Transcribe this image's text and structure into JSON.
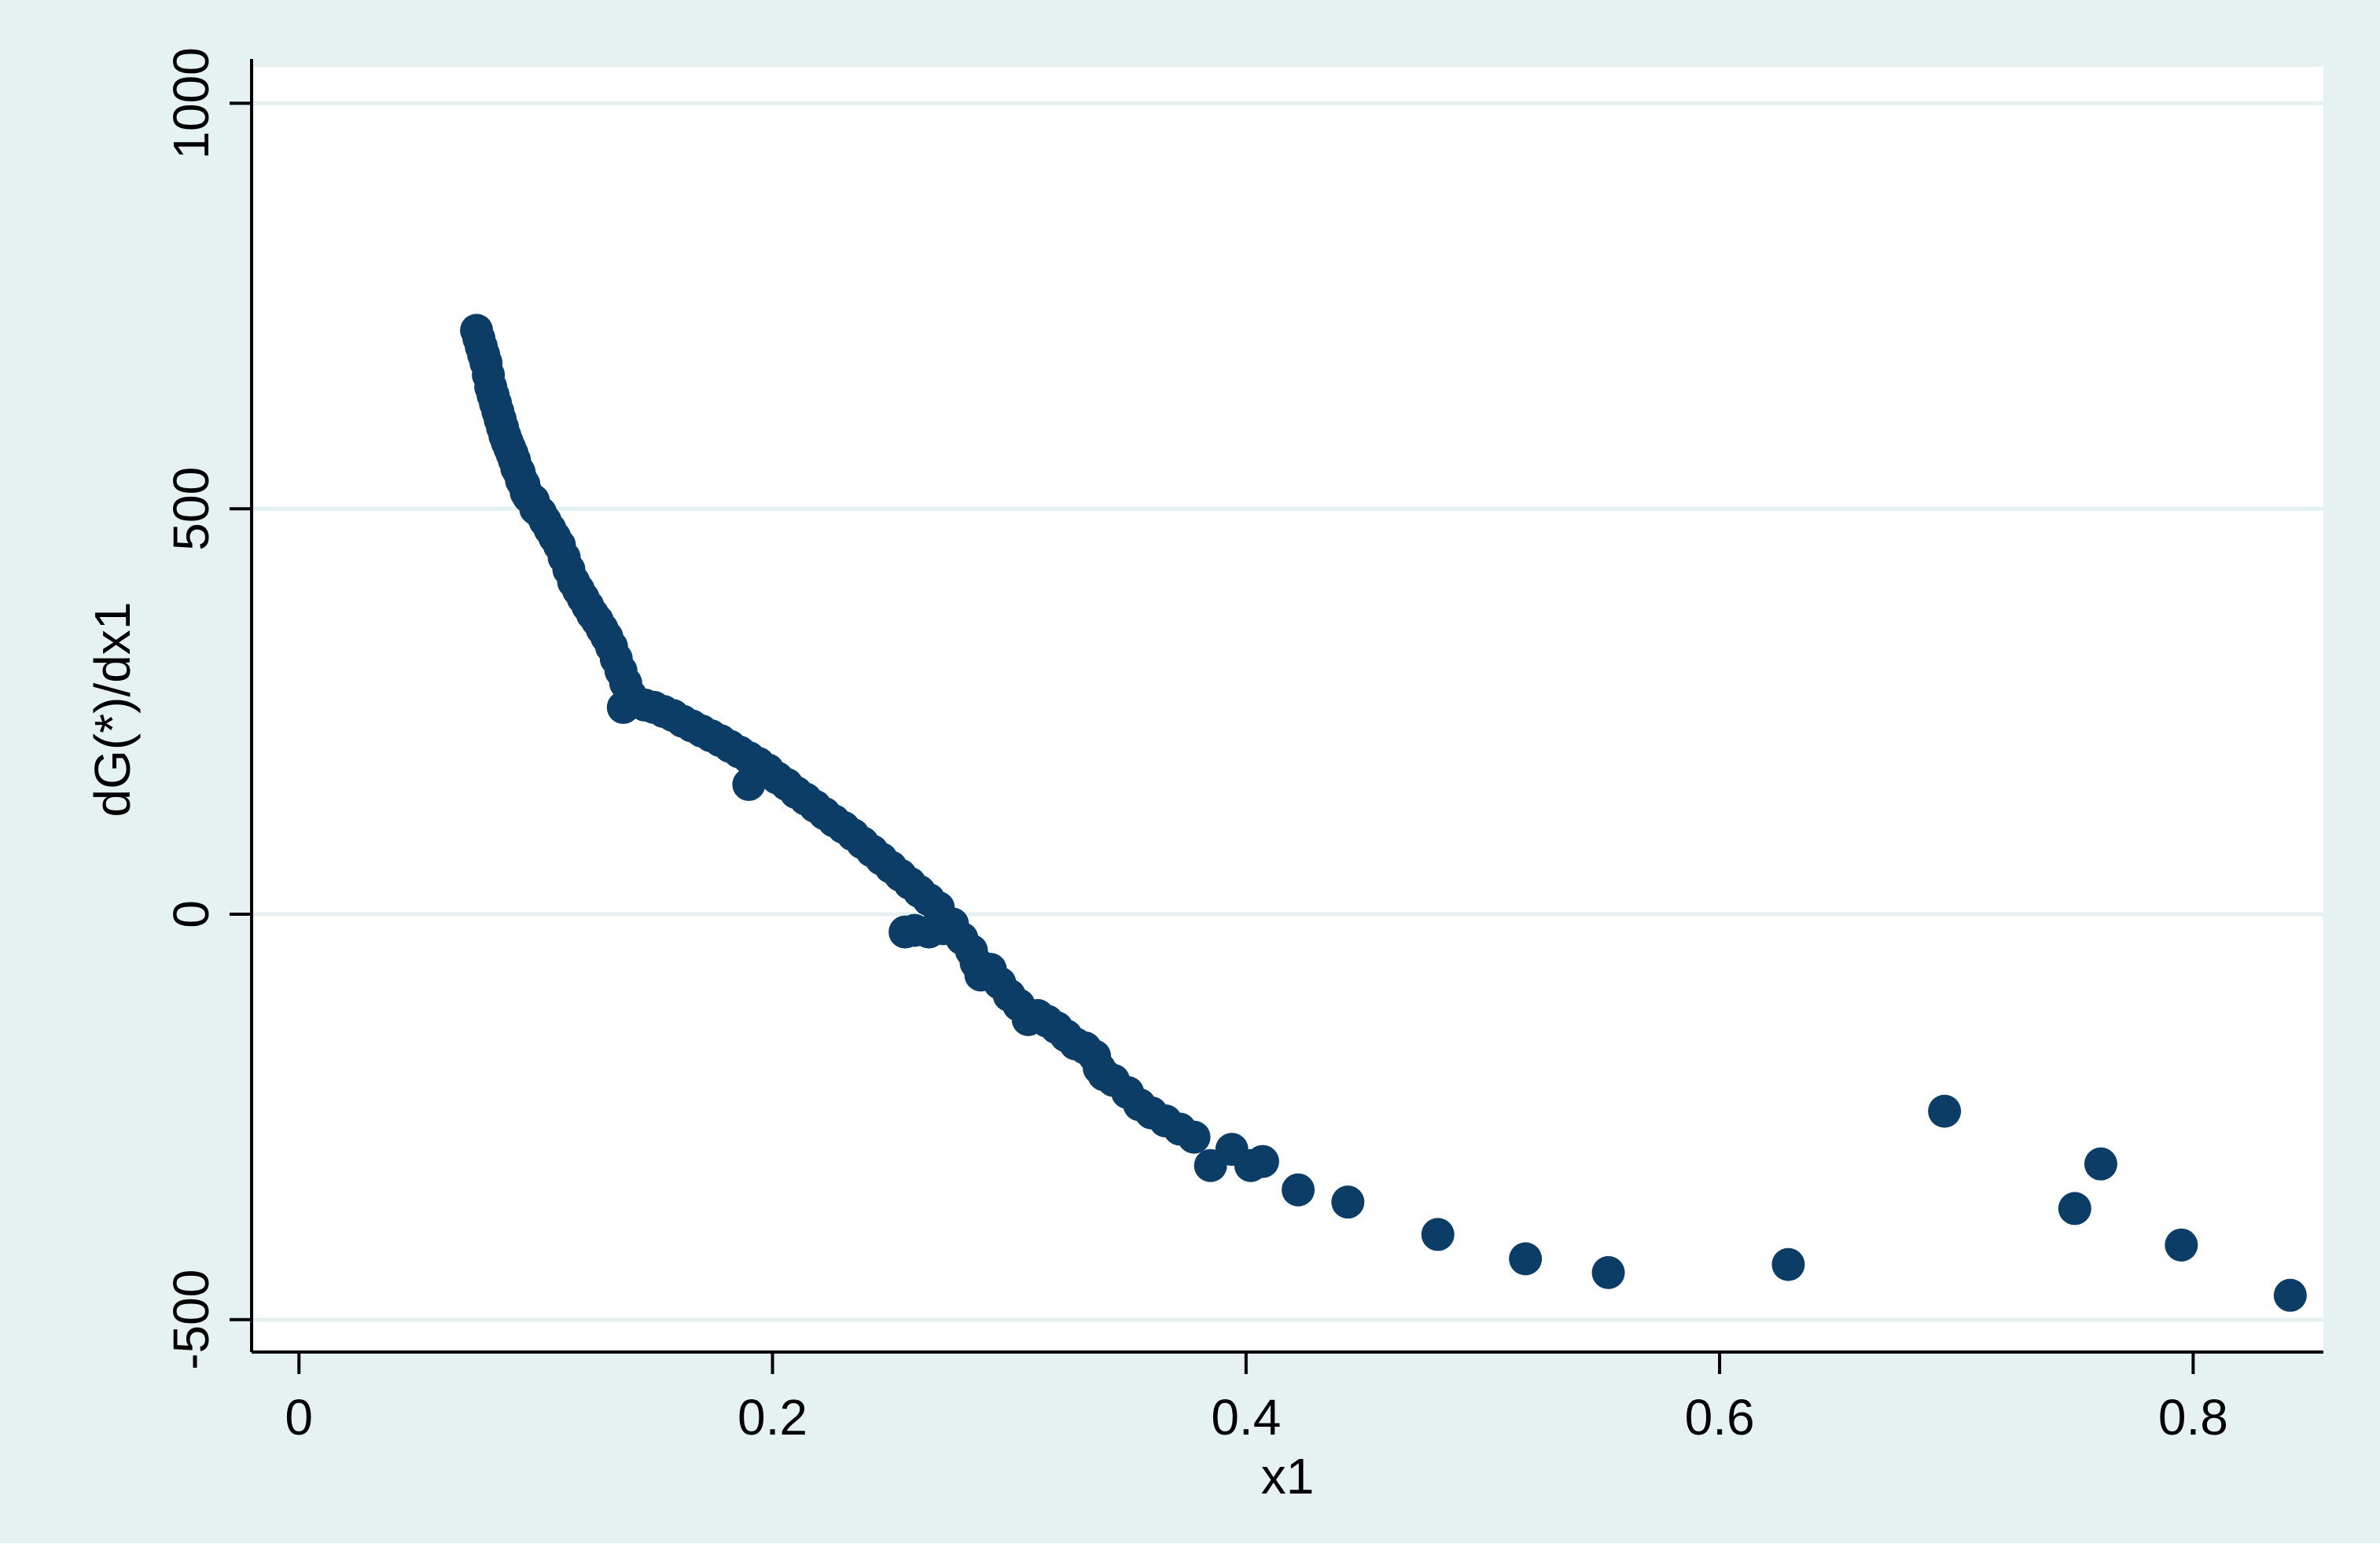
{
  "colors": {
    "outer_background": "#e6f2f2",
    "plot_background": "#ffffff",
    "marker": "#0b3d66",
    "gridline": "#e6f0f0",
    "axis": "#000000"
  },
  "chart_data": {
    "type": "scatter",
    "title": "",
    "xlabel": "x1",
    "ylabel": "dG(*)/dx1",
    "xlim": [
      -0.02,
      0.855
    ],
    "ylim": [
      -540,
      1045
    ],
    "x_ticks": [
      0,
      0.2,
      0.4,
      0.6,
      0.8
    ],
    "x_tick_labels": [
      "0",
      "0.2",
      "0.4",
      "0.6",
      "0.8"
    ],
    "y_ticks": [
      -500,
      0,
      500,
      1000
    ],
    "y_tick_labels": [
      "-500",
      "0",
      "500",
      "1000"
    ],
    "grid": "horizontal",
    "legend": "none",
    "series": [
      {
        "points": [
          [
            0.075,
            720
          ],
          [
            0.076,
            710
          ],
          [
            0.077,
            700
          ],
          [
            0.078,
            690
          ],
          [
            0.079,
            680
          ],
          [
            0.08,
            665
          ],
          [
            0.081,
            650
          ],
          [
            0.082,
            640
          ],
          [
            0.083,
            630
          ],
          [
            0.084,
            620
          ],
          [
            0.085,
            610
          ],
          [
            0.086,
            600
          ],
          [
            0.087,
            590
          ],
          [
            0.088,
            582
          ],
          [
            0.089,
            575
          ],
          [
            0.09,
            568
          ],
          [
            0.091,
            560
          ],
          [
            0.092,
            550
          ],
          [
            0.093,
            545
          ],
          [
            0.094,
            535
          ],
          [
            0.095,
            530
          ],
          [
            0.096,
            520
          ],
          [
            0.097,
            515
          ],
          [
            0.099,
            510
          ],
          [
            0.1,
            500
          ],
          [
            0.102,
            495
          ],
          [
            0.104,
            485
          ],
          [
            0.106,
            475
          ],
          [
            0.108,
            465
          ],
          [
            0.11,
            455
          ],
          [
            0.112,
            440
          ],
          [
            0.114,
            425
          ],
          [
            0.116,
            410
          ],
          [
            0.118,
            400
          ],
          [
            0.12,
            390
          ],
          [
            0.122,
            380
          ],
          [
            0.124,
            370
          ],
          [
            0.126,
            362
          ],
          [
            0.128,
            352
          ],
          [
            0.13,
            342
          ],
          [
            0.132,
            330
          ],
          [
            0.134,
            315
          ],
          [
            0.136,
            300
          ],
          [
            0.138,
            285
          ],
          [
            0.14,
            270
          ],
          [
            0.137,
            255
          ],
          [
            0.142,
            262
          ],
          [
            0.146,
            258
          ],
          [
            0.15,
            255
          ],
          [
            0.154,
            250
          ],
          [
            0.158,
            245
          ],
          [
            0.162,
            238
          ],
          [
            0.166,
            232
          ],
          [
            0.17,
            226
          ],
          [
            0.174,
            220
          ],
          [
            0.178,
            214
          ],
          [
            0.182,
            207
          ],
          [
            0.186,
            200
          ],
          [
            0.19,
            193
          ],
          [
            0.194,
            186
          ],
          [
            0.198,
            178
          ],
          [
            0.19,
            160
          ],
          [
            0.202,
            168
          ],
          [
            0.206,
            160
          ],
          [
            0.21,
            150
          ],
          [
            0.214,
            142
          ],
          [
            0.218,
            133
          ],
          [
            0.222,
            124
          ],
          [
            0.226,
            115
          ],
          [
            0.23,
            107
          ],
          [
            0.234,
            98
          ],
          [
            0.238,
            88
          ],
          [
            0.242,
            78
          ],
          [
            0.246,
            68
          ],
          [
            0.25,
            58
          ],
          [
            0.254,
            48
          ],
          [
            0.258,
            38
          ],
          [
            0.262,
            28
          ],
          [
            0.266,
            18
          ],
          [
            0.27,
            8
          ],
          [
            0.256,
            -22
          ],
          [
            0.26,
            -20
          ],
          [
            0.266,
            -22
          ],
          [
            0.272,
            -18
          ],
          [
            0.276,
            -12
          ],
          [
            0.28,
            -30
          ],
          [
            0.284,
            -45
          ],
          [
            0.286,
            -60
          ],
          [
            0.288,
            -75
          ],
          [
            0.292,
            -68
          ],
          [
            0.296,
            -85
          ],
          [
            0.3,
            -100
          ],
          [
            0.304,
            -112
          ],
          [
            0.308,
            -130
          ],
          [
            0.312,
            -125
          ],
          [
            0.316,
            -132
          ],
          [
            0.32,
            -140
          ],
          [
            0.324,
            -150
          ],
          [
            0.328,
            -160
          ],
          [
            0.332,
            -165
          ],
          [
            0.336,
            -175
          ],
          [
            0.338,
            -190
          ],
          [
            0.34,
            -198
          ],
          [
            0.344,
            -205
          ],
          [
            0.35,
            -220
          ],
          [
            0.355,
            -235
          ],
          [
            0.36,
            -245
          ],
          [
            0.366,
            -255
          ],
          [
            0.372,
            -265
          ],
          [
            0.378,
            -275
          ],
          [
            0.385,
            -310
          ],
          [
            0.394,
            -290
          ],
          [
            0.402,
            -310
          ],
          [
            0.407,
            -305
          ],
          [
            0.422,
            -340
          ],
          [
            0.443,
            -355
          ],
          [
            0.481,
            -395
          ],
          [
            0.518,
            -425
          ],
          [
            0.553,
            -442
          ],
          [
            0.629,
            -432
          ],
          [
            0.695,
            -243
          ],
          [
            0.75,
            -363
          ],
          [
            0.761,
            -308
          ],
          [
            0.795,
            -408
          ],
          [
            0.841,
            -470
          ]
        ]
      }
    ]
  }
}
